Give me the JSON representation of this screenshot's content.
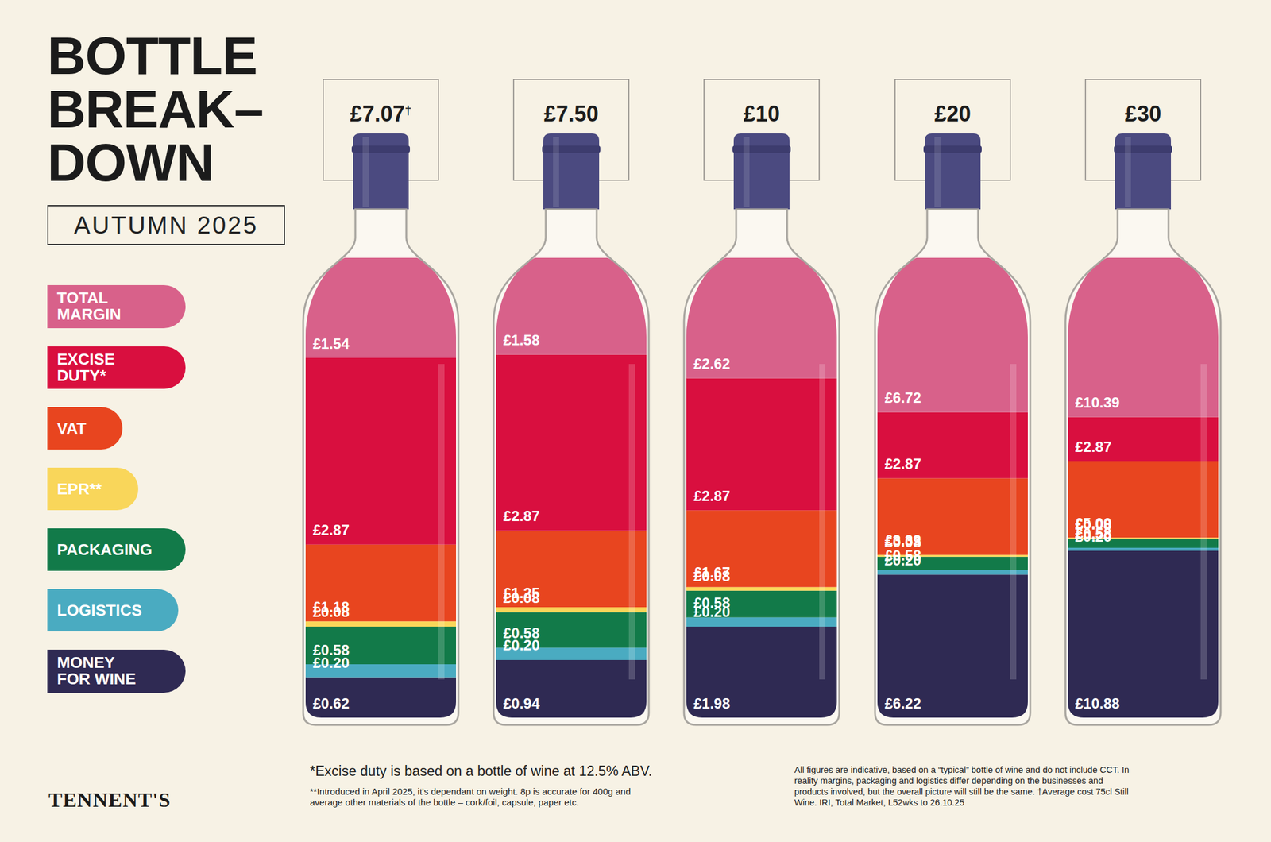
{
  "title": "BOTTLE BREAK–DOWN",
  "subtitle": "AUTUMN 2025",
  "legend": "left",
  "brand": "TENNENT'S",
  "footnotes": [
    "*Excise duty is based on a bottle of wine at 12.5% ABV.",
    "**Introduced in April 2025, it's dependant on weight. 8p is accurate for 400g and average other materials of the bottle – cork/foil, capsule, paper etc.",
    "All figures are indicative, based on a “typical” bottle of wine and do not include CCT. In reality margins, packaging and logistics differ depending on the businesses and products involved, but the overall picture will still be the same. †Average cost 75cl Still Wine. IRI, Total Market, L52wks to 26.10.25"
  ],
  "chart_data": [
    {
      "type": "bar",
      "title": "£7.07†",
      "stacked": true,
      "data_labels": true,
      "tick_labels": false,
      "grid": false,
      "categories": [
        null
      ],
      "ylim": [
        0,
        7.07
      ],
      "yticks": [],
      "series": [
        {
          "name": "TOTAL MARGIN",
          "color": "#d8618a",
          "values": [
            1.54
          ],
          "value_labels": [
            "£1.54"
          ]
        },
        {
          "name": "EXCISE DUTY*",
          "color": "#d90f3f",
          "values": [
            2.87
          ],
          "value_labels": [
            "£2.87"
          ]
        },
        {
          "name": "VAT",
          "color": "#e8451f",
          "values": [
            1.18
          ],
          "value_labels": [
            "£1.18"
          ]
        },
        {
          "name": "EPR**",
          "color": "#f9d65a",
          "values": [
            0.08
          ],
          "value_labels": [
            "£0.08"
          ]
        },
        {
          "name": "PACKAGING",
          "color": "#127a49",
          "values": [
            0.58
          ],
          "value_labels": [
            "£0.58"
          ]
        },
        {
          "name": "LOGISTICS",
          "color": "#4aabc1",
          "values": [
            0.2
          ],
          "value_labels": [
            "£0.20"
          ]
        },
        {
          "name": "MONEY FOR WINE",
          "color": "#2f2a53",
          "values": [
            0.62
          ],
          "value_labels": [
            "£0.62"
          ]
        }
      ]
    },
    {
      "type": "bar",
      "title": "£7.50",
      "stacked": true,
      "data_labels": true,
      "tick_labels": false,
      "grid": false,
      "categories": [
        null
      ],
      "ylim": [
        0,
        7.5
      ],
      "yticks": [],
      "series": [
        {
          "name": "TOTAL MARGIN",
          "color": "#d8618a",
          "values": [
            1.58
          ],
          "value_labels": [
            "£1.58"
          ]
        },
        {
          "name": "EXCISE DUTY*",
          "color": "#d90f3f",
          "values": [
            2.87
          ],
          "value_labels": [
            "£2.87"
          ]
        },
        {
          "name": "VAT",
          "color": "#e8451f",
          "values": [
            1.25
          ],
          "value_labels": [
            "£1.25"
          ]
        },
        {
          "name": "EPR**",
          "color": "#f9d65a",
          "values": [
            0.08
          ],
          "value_labels": [
            "£0.08"
          ]
        },
        {
          "name": "PACKAGING",
          "color": "#127a49",
          "values": [
            0.58
          ],
          "value_labels": [
            "£0.58"
          ]
        },
        {
          "name": "LOGISTICS",
          "color": "#4aabc1",
          "values": [
            0.2
          ],
          "value_labels": [
            "£0.20"
          ]
        },
        {
          "name": "MONEY FOR WINE",
          "color": "#2f2a53",
          "values": [
            0.94
          ],
          "value_labels": [
            "£0.94"
          ]
        }
      ]
    },
    {
      "type": "bar",
      "title": "£10",
      "stacked": true,
      "data_labels": true,
      "tick_labels": false,
      "grid": false,
      "categories": [
        null
      ],
      "ylim": [
        0,
        10
      ],
      "yticks": [],
      "series": [
        {
          "name": "TOTAL MARGIN",
          "color": "#d8618a",
          "values": [
            2.62
          ],
          "value_labels": [
            "£2.62"
          ]
        },
        {
          "name": "EXCISE DUTY*",
          "color": "#d90f3f",
          "values": [
            2.87
          ],
          "value_labels": [
            "£2.87"
          ]
        },
        {
          "name": "VAT",
          "color": "#e8451f",
          "values": [
            1.67
          ],
          "value_labels": [
            "£1.67"
          ]
        },
        {
          "name": "EPR**",
          "color": "#f9d65a",
          "values": [
            0.08
          ],
          "value_labels": [
            "£0.08"
          ]
        },
        {
          "name": "PACKAGING",
          "color": "#127a49",
          "values": [
            0.58
          ],
          "value_labels": [
            "£0.58"
          ]
        },
        {
          "name": "LOGISTICS",
          "color": "#4aabc1",
          "values": [
            0.2
          ],
          "value_labels": [
            "£0.20"
          ]
        },
        {
          "name": "MONEY FOR WINE",
          "color": "#2f2a53",
          "values": [
            1.98
          ],
          "value_labels": [
            "£1.98"
          ]
        }
      ]
    },
    {
      "type": "bar",
      "title": "£20",
      "stacked": true,
      "data_labels": true,
      "tick_labels": false,
      "grid": false,
      "categories": [
        null
      ],
      "ylim": [
        0,
        20
      ],
      "yticks": [],
      "series": [
        {
          "name": "TOTAL MARGIN",
          "color": "#d8618a",
          "values": [
            6.72
          ],
          "value_labels": [
            "£6.72"
          ]
        },
        {
          "name": "EXCISE DUTY*",
          "color": "#d90f3f",
          "values": [
            2.87
          ],
          "value_labels": [
            "£2.87"
          ]
        },
        {
          "name": "VAT",
          "color": "#e8451f",
          "values": [
            3.33
          ],
          "value_labels": [
            "£3.33"
          ]
        },
        {
          "name": "EPR**",
          "color": "#f9d65a",
          "values": [
            0.08
          ],
          "value_labels": [
            "£0.08"
          ]
        },
        {
          "name": "PACKAGING",
          "color": "#127a49",
          "values": [
            0.58
          ],
          "value_labels": [
            "£0.58"
          ]
        },
        {
          "name": "LOGISTICS",
          "color": "#4aabc1",
          "values": [
            0.2
          ],
          "value_labels": [
            "£0.20"
          ]
        },
        {
          "name": "MONEY FOR WINE",
          "color": "#2f2a53",
          "values": [
            6.22
          ],
          "value_labels": [
            "£6.22"
          ]
        }
      ]
    },
    {
      "type": "bar",
      "title": "£30",
      "stacked": true,
      "data_labels": true,
      "tick_labels": false,
      "grid": false,
      "categories": [
        null
      ],
      "ylim": [
        0,
        30
      ],
      "yticks": [],
      "series": [
        {
          "name": "TOTAL MARGIN",
          "color": "#d8618a",
          "values": [
            10.39
          ],
          "value_labels": [
            "£10.39"
          ]
        },
        {
          "name": "EXCISE DUTY*",
          "color": "#d90f3f",
          "values": [
            2.87
          ],
          "value_labels": [
            "£2.87"
          ]
        },
        {
          "name": "VAT",
          "color": "#e8451f",
          "values": [
            5.0
          ],
          "value_labels": [
            "£5.00"
          ]
        },
        {
          "name": "EPR**",
          "color": "#f9d65a",
          "values": [
            0.08
          ],
          "value_labels": [
            "£0.08"
          ]
        },
        {
          "name": "PACKAGING",
          "color": "#127a49",
          "values": [
            0.58
          ],
          "value_labels": [
            "£0.58"
          ]
        },
        {
          "name": "LOGISTICS",
          "color": "#4aabc1",
          "values": [
            0.2
          ],
          "value_labels": [
            "£0.20"
          ]
        },
        {
          "name": "MONEY FOR WINE",
          "color": "#2f2a53",
          "values": [
            10.88
          ],
          "value_labels": [
            "£10.88"
          ]
        }
      ]
    }
  ]
}
